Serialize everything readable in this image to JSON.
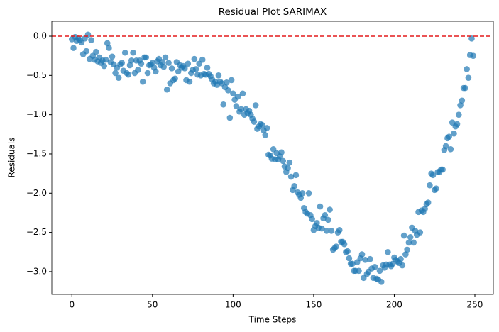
{
  "chart_data": {
    "type": "scatter",
    "title": "Residual Plot SARIMAX",
    "x_label": "Time Steps",
    "y_label": "Residuals",
    "hline": 0,
    "hline_color": "#e41a1c",
    "color": "#1f77b4",
    "xlim": [
      -12.45,
      261.45
    ],
    "ylim": [
      -3.29,
      0.19
    ],
    "xticks": [
      0,
      50,
      100,
      150,
      200,
      250
    ],
    "yticks": [
      {
        "value": 0,
        "label": "0.0"
      },
      {
        "value": -0.5,
        "label": "−0.5"
      },
      {
        "value": -1,
        "label": "−1.0"
      },
      {
        "value": -1.5,
        "label": "−1.5"
      },
      {
        "value": -2,
        "label": "−2.0"
      },
      {
        "value": -2.5,
        "label": "−2.5"
      },
      {
        "value": -3,
        "label": "−3.0"
      }
    ],
    "x": [
      0,
      1,
      2,
      3,
      4,
      5,
      6,
      7,
      8,
      9,
      10,
      11,
      12,
      13,
      14,
      15,
      16,
      17,
      18,
      19,
      20,
      21,
      22,
      23,
      24,
      25,
      26,
      27,
      28,
      29,
      30,
      31,
      32,
      33,
      34,
      35,
      36,
      37,
      38,
      39,
      40,
      41,
      42,
      43,
      44,
      45,
      46,
      47,
      48,
      49,
      50,
      51,
      52,
      53,
      54,
      55,
      56,
      57,
      58,
      59,
      60,
      61,
      62,
      63,
      64,
      65,
      66,
      67,
      68,
      69,
      70,
      71,
      72,
      73,
      74,
      75,
      76,
      77,
      78,
      79,
      80,
      81,
      82,
      83,
      84,
      85,
      86,
      87,
      88,
      89,
      90,
      91,
      92,
      93,
      94,
      95,
      96,
      97,
      98,
      99,
      100,
      101,
      102,
      103,
      104,
      105,
      106,
      107,
      108,
      109,
      110,
      111,
      112,
      113,
      114,
      115,
      116,
      117,
      118,
      119,
      120,
      121,
      122,
      123,
      124,
      125,
      126,
      127,
      128,
      129,
      130,
      131,
      132,
      133,
      134,
      135,
      136,
      137,
      138,
      139,
      140,
      141,
      142,
      143,
      144,
      145,
      146,
      147,
      148,
      149,
      150,
      151,
      152,
      153,
      154,
      155,
      156,
      157,
      158,
      159,
      160,
      161,
      162,
      163,
      164,
      165,
      166,
      167,
      168,
      169,
      170,
      171,
      172,
      173,
      174,
      175,
      176,
      177,
      178,
      179,
      180,
      181,
      182,
      183,
      184,
      185,
      186,
      187,
      188,
      189,
      190,
      191,
      192,
      193,
      194,
      195,
      196,
      197,
      198,
      199,
      200,
      201,
      202,
      203,
      204,
      205,
      206,
      207,
      208,
      209,
      210,
      211,
      212,
      213,
      214,
      215,
      216,
      217,
      218,
      219,
      220,
      221,
      222,
      223,
      224,
      225,
      226,
      227,
      228,
      229,
      230,
      231,
      232,
      233,
      234,
      235,
      236,
      237,
      238,
      239,
      240,
      241,
      242,
      243,
      244,
      245,
      246,
      247,
      248,
      249
    ],
    "values": [
      -0.04,
      -0.15,
      -0.01,
      -0.06,
      -0.03,
      -0.05,
      -0.08,
      -0.23,
      -0.03,
      -0.19,
      0.02,
      -0.29,
      -0.05,
      -0.25,
      -0.3,
      -0.2,
      -0.32,
      -0.27,
      -0.34,
      -0.31,
      -0.38,
      -0.3,
      -0.09,
      -0.15,
      -0.33,
      -0.26,
      -0.36,
      -0.47,
      -0.4,
      -0.53,
      -0.36,
      -0.34,
      -0.44,
      -0.21,
      -0.47,
      -0.49,
      -0.37,
      -0.31,
      -0.21,
      -0.47,
      -0.31,
      -0.43,
      -0.31,
      -0.35,
      -0.58,
      -0.27,
      -0.27,
      -0.47,
      -0.37,
      -0.36,
      -0.34,
      -0.4,
      -0.45,
      -0.32,
      -0.29,
      -0.37,
      -0.33,
      -0.39,
      -0.27,
      -0.68,
      -0.34,
      -0.6,
      -0.41,
      -0.56,
      -0.54,
      -0.33,
      -0.45,
      -0.37,
      -0.4,
      -0.38,
      -0.41,
      -0.56,
      -0.35,
      -0.58,
      -0.47,
      -0.43,
      -0.29,
      -0.42,
      -0.49,
      -0.35,
      -0.5,
      -0.3,
      -0.48,
      -0.49,
      -0.4,
      -0.48,
      -0.51,
      -0.55,
      -0.6,
      -0.58,
      -0.62,
      -0.5,
      -0.58,
      -0.6,
      -0.87,
      -0.65,
      -0.59,
      -0.69,
      -1.04,
      -0.56,
      -0.73,
      -0.81,
      -0.89,
      -0.77,
      -0.96,
      -0.93,
      -0.73,
      -1.0,
      -0.93,
      -0.98,
      -0.95,
      -1.0,
      -1.05,
      -1.09,
      -0.88,
      -1.18,
      -1.15,
      -1.12,
      -1.13,
      -1.2,
      -1.26,
      -1.17,
      -1.51,
      -1.52,
      -1.56,
      -1.44,
      -1.57,
      -1.49,
      -1.57,
      -1.53,
      -1.48,
      -1.59,
      -1.66,
      -1.73,
      -1.68,
      -1.61,
      -1.79,
      -1.96,
      -1.91,
      -1.77,
      -1.99,
      -2.02,
      -2.06,
      -2.0,
      -2.19,
      -2.24,
      -2.26,
      -2.0,
      -2.28,
      -2.33,
      -2.47,
      -2.42,
      -2.38,
      -2.44,
      -2.17,
      -2.45,
      -2.32,
      -2.28,
      -2.48,
      -2.34,
      -2.21,
      -2.48,
      -2.72,
      -2.7,
      -2.68,
      -2.5,
      -2.47,
      -2.62,
      -2.62,
      -2.65,
      -2.75,
      -2.74,
      -2.83,
      -2.9,
      -2.9,
      -2.99,
      -2.99,
      -2.88,
      -2.99,
      -2.83,
      -2.78,
      -3.08,
      -2.85,
      -3.03,
      -3.0,
      -2.84,
      -2.96,
      -3.08,
      -2.94,
      -3.09,
      -3.1,
      -2.99,
      -3.13,
      -2.92,
      -2.95,
      -2.91,
      -2.75,
      -2.91,
      -2.93,
      -2.9,
      -2.82,
      -2.85,
      -2.87,
      -2.89,
      -2.84,
      -2.92,
      -2.54,
      -2.78,
      -2.72,
      -2.63,
      -2.56,
      -2.44,
      -2.63,
      -2.48,
      -2.53,
      -2.24,
      -2.5,
      -2.22,
      -2.24,
      -2.2,
      -2.14,
      -2.12,
      -1.9,
      -1.75,
      -1.77,
      -1.96,
      -1.94,
      -1.73,
      -1.73,
      -1.7,
      -1.7,
      -1.45,
      -1.4,
      -1.3,
      -1.28,
      -1.44,
      -1.1,
      -1.24,
      -1.15,
      -1.12,
      -1.0,
      -0.88,
      -0.82,
      -0.66,
      -0.66,
      -0.42,
      -0.53,
      -0.24,
      -0.03,
      -0.25
    ]
  }
}
